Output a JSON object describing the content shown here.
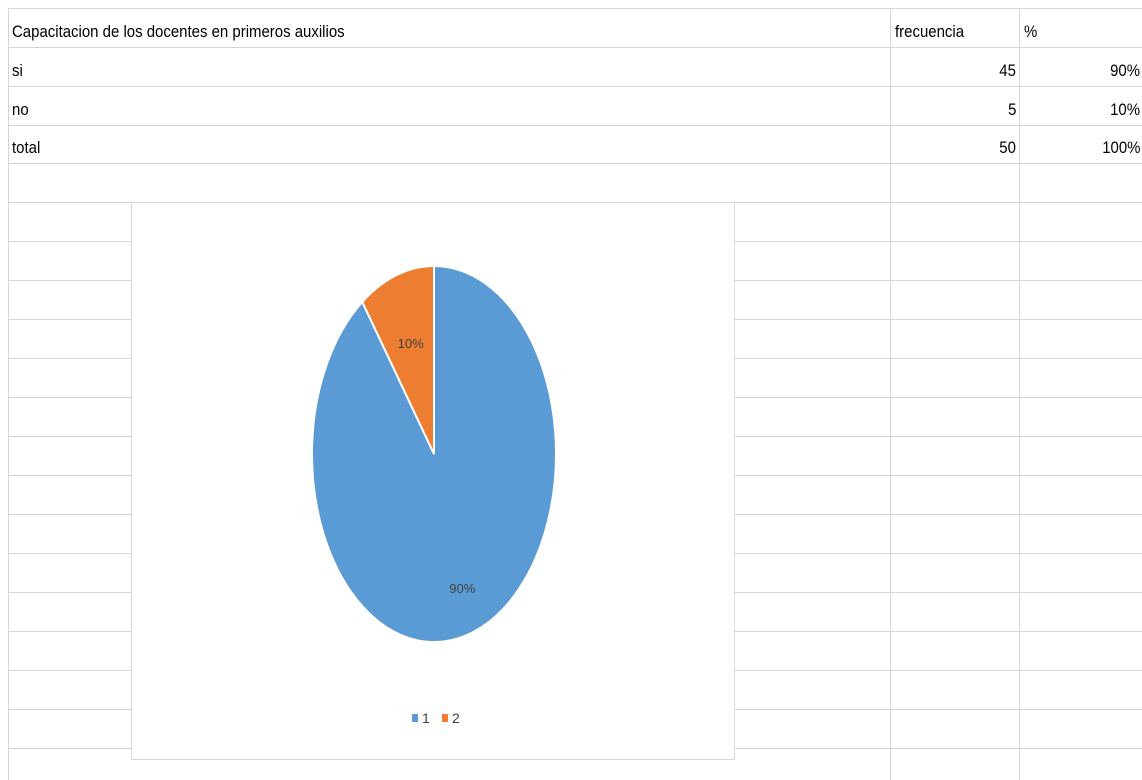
{
  "sheet": {
    "header": {
      "title": "Capacitacion de los docentes en primeros auxilios",
      "col_frecuencia": "frecuencia",
      "col_pct": "%"
    },
    "rows": [
      {
        "label": "si",
        "frecuencia": "45",
        "pct": "90%"
      },
      {
        "label": "no",
        "frecuencia": "5",
        "pct": "10%"
      },
      {
        "label": "total",
        "frecuencia": "50",
        "pct": "100%"
      }
    ]
  },
  "chart_data": {
    "type": "pie",
    "categories": [
      "1",
      "2"
    ],
    "values": [
      90,
      10
    ],
    "data_labels": [
      "90%",
      "10%"
    ],
    "colors": [
      "#5b9bd5",
      "#ed7d31"
    ],
    "legend_position": "bottom"
  }
}
